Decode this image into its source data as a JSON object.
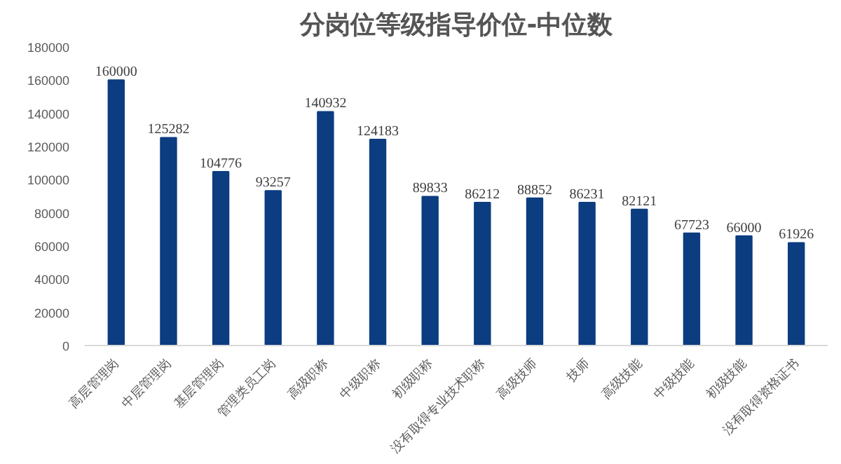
{
  "chart_data": {
    "type": "bar",
    "title": "分岗位等级指导价位-中位数",
    "categories": [
      "高层管理岗",
      "中层管理岗",
      "基层管理岗",
      "管理类员工岗",
      "高级职称",
      "中级职称",
      "初级职称",
      "没有取得专业技术职称",
      "高级技师",
      "技师",
      "高级技能",
      "中级技能",
      "初级技能",
      "没有取得资格证书"
    ],
    "values": [
      160000,
      125282,
      104776,
      93257,
      140932,
      124183,
      89833,
      86212,
      88852,
      86231,
      82121,
      67723,
      66000,
      61926
    ],
    "color": "#0b3d80",
    "data_labels": true,
    "ylim": [
      0,
      180000
    ],
    "yticks": [
      0,
      20000,
      40000,
      60000,
      80000,
      100000,
      120000,
      140000,
      160000,
      180000
    ],
    "grid": false
  }
}
